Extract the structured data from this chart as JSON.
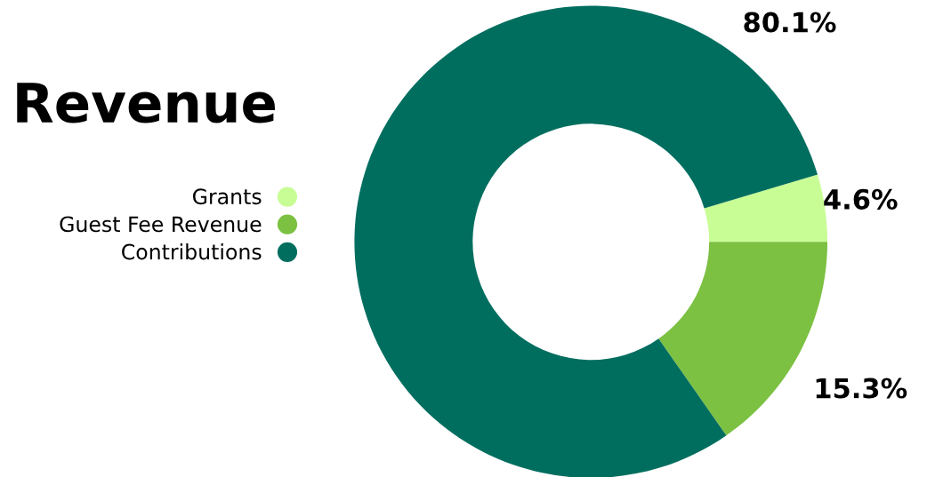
{
  "chart_data": {
    "type": "donut",
    "title": "Revenue",
    "categories": [
      "Grants",
      "Guest Fee Revenue",
      "Contributions"
    ],
    "values": [
      4.6,
      15.3,
      80.1
    ],
    "colors": [
      "#c8fd95",
      "#7cc142",
      "#006e5f"
    ],
    "value_labels": [
      "4.6%",
      "15.3%",
      "80.1%"
    ],
    "legend": "left"
  }
}
